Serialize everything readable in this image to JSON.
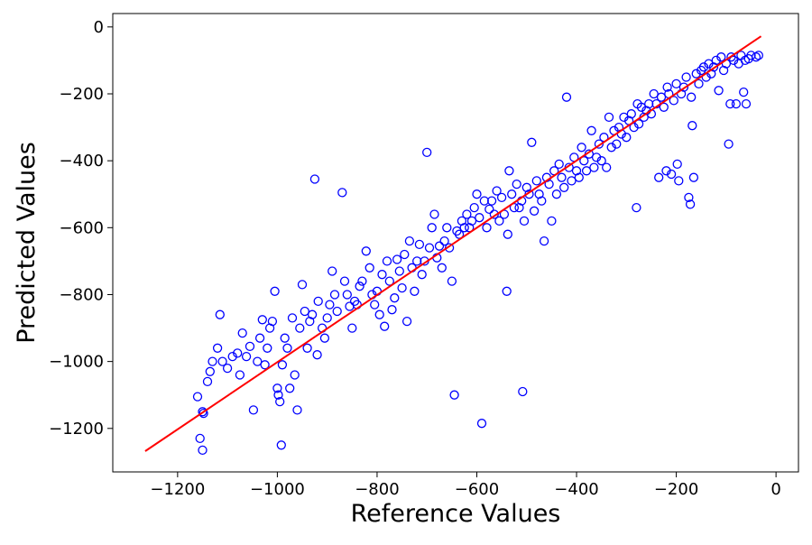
{
  "chart_data": {
    "type": "scatter",
    "title": "",
    "xlabel": "Reference Values",
    "ylabel": "Predicted Values",
    "xlim": [
      -1330,
      45
    ],
    "ylim": [
      -1330,
      40
    ],
    "xticks": [
      -1200,
      -1000,
      -800,
      -600,
      -400,
      -200,
      0
    ],
    "yticks": [
      -1200,
      -1000,
      -800,
      -600,
      -400,
      -200,
      0
    ],
    "xtick_labels": [
      "−1200",
      "−1000",
      "−800",
      "−600",
      "−400",
      "−200",
      "0"
    ],
    "ytick_labels": [
      "−1200",
      "−1000",
      "−800",
      "−600",
      "−400",
      "−200",
      "0"
    ],
    "grid": false,
    "legend": "none",
    "colors": {
      "points": "#0000ff",
      "fit_line": "#ff0000"
    },
    "fit_line": {
      "x": [
        -1265,
        -30
      ],
      "y": [
        -1268,
        -28
      ]
    },
    "series": [
      {
        "marker": "open-circle",
        "points": [
          [
            -1160,
            -1105
          ],
          [
            -1155,
            -1230
          ],
          [
            -1150,
            -1265
          ],
          [
            -1150,
            -1150
          ],
          [
            -1148,
            -1155
          ],
          [
            -1140,
            -1060
          ],
          [
            -1135,
            -1030
          ],
          [
            -1130,
            -1000
          ],
          [
            -1120,
            -960
          ],
          [
            -1115,
            -860
          ],
          [
            -1110,
            -1000
          ],
          [
            -1100,
            -1020
          ],
          [
            -1090,
            -985
          ],
          [
            -1080,
            -975
          ],
          [
            -1075,
            -1040
          ],
          [
            -1070,
            -915
          ],
          [
            -1062,
            -985
          ],
          [
            -1055,
            -955
          ],
          [
            -1048,
            -1145
          ],
          [
            -1040,
            -1000
          ],
          [
            -1035,
            -930
          ],
          [
            -1030,
            -875
          ],
          [
            -1025,
            -1010
          ],
          [
            -1020,
            -960
          ],
          [
            -1015,
            -900
          ],
          [
            -1010,
            -880
          ],
          [
            -1005,
            -790
          ],
          [
            -1000,
            -1080
          ],
          [
            -998,
            -1100
          ],
          [
            -995,
            -1120
          ],
          [
            -992,
            -1250
          ],
          [
            -990,
            -1010
          ],
          [
            -985,
            -930
          ],
          [
            -980,
            -960
          ],
          [
            -975,
            -1080
          ],
          [
            -970,
            -870
          ],
          [
            -965,
            -1040
          ],
          [
            -960,
            -1145
          ],
          [
            -955,
            -900
          ],
          [
            -950,
            -770
          ],
          [
            -945,
            -850
          ],
          [
            -940,
            -960
          ],
          [
            -935,
            -880
          ],
          [
            -930,
            -860
          ],
          [
            -925,
            -455
          ],
          [
            -920,
            -980
          ],
          [
            -918,
            -820
          ],
          [
            -910,
            -900
          ],
          [
            -905,
            -930
          ],
          [
            -900,
            -870
          ],
          [
            -895,
            -830
          ],
          [
            -890,
            -730
          ],
          [
            -885,
            -800
          ],
          [
            -880,
            -850
          ],
          [
            -870,
            -495
          ],
          [
            -865,
            -760
          ],
          [
            -860,
            -800
          ],
          [
            -855,
            -835
          ],
          [
            -850,
            -900
          ],
          [
            -845,
            -820
          ],
          [
            -840,
            -830
          ],
          [
            -835,
            -775
          ],
          [
            -830,
            -760
          ],
          [
            -822,
            -670
          ],
          [
            -815,
            -720
          ],
          [
            -810,
            -800
          ],
          [
            -805,
            -830
          ],
          [
            -800,
            -790
          ],
          [
            -795,
            -860
          ],
          [
            -790,
            -740
          ],
          [
            -785,
            -895
          ],
          [
            -780,
            -700
          ],
          [
            -775,
            -760
          ],
          [
            -770,
            -845
          ],
          [
            -765,
            -810
          ],
          [
            -760,
            -695
          ],
          [
            -755,
            -730
          ],
          [
            -750,
            -780
          ],
          [
            -745,
            -680
          ],
          [
            -740,
            -880
          ],
          [
            -735,
            -640
          ],
          [
            -730,
            -720
          ],
          [
            -725,
            -790
          ],
          [
            -720,
            -700
          ],
          [
            -715,
            -650
          ],
          [
            -710,
            -740
          ],
          [
            -705,
            -700
          ],
          [
            -700,
            -375
          ],
          [
            -695,
            -660
          ],
          [
            -690,
            -600
          ],
          [
            -685,
            -560
          ],
          [
            -680,
            -690
          ],
          [
            -675,
            -655
          ],
          [
            -670,
            -720
          ],
          [
            -665,
            -640
          ],
          [
            -660,
            -600
          ],
          [
            -655,
            -660
          ],
          [
            -650,
            -760
          ],
          [
            -645,
            -1100
          ],
          [
            -640,
            -610
          ],
          [
            -635,
            -620
          ],
          [
            -630,
            -580
          ],
          [
            -625,
            -600
          ],
          [
            -620,
            -560
          ],
          [
            -615,
            -600
          ],
          [
            -610,
            -580
          ],
          [
            -605,
            -540
          ],
          [
            -600,
            -500
          ],
          [
            -595,
            -570
          ],
          [
            -590,
            -1185
          ],
          [
            -585,
            -520
          ],
          [
            -580,
            -600
          ],
          [
            -575,
            -545
          ],
          [
            -570,
            -520
          ],
          [
            -565,
            -560
          ],
          [
            -560,
            -490
          ],
          [
            -555,
            -580
          ],
          [
            -550,
            -510
          ],
          [
            -545,
            -560
          ],
          [
            -540,
            -790
          ],
          [
            -538,
            -620
          ],
          [
            -535,
            -430
          ],
          [
            -530,
            -500
          ],
          [
            -525,
            -540
          ],
          [
            -520,
            -470
          ],
          [
            -515,
            -540
          ],
          [
            -510,
            -520
          ],
          [
            -508,
            -1090
          ],
          [
            -505,
            -580
          ],
          [
            -500,
            -480
          ],
          [
            -495,
            -500
          ],
          [
            -490,
            -345
          ],
          [
            -485,
            -550
          ],
          [
            -480,
            -460
          ],
          [
            -475,
            -500
          ],
          [
            -470,
            -520
          ],
          [
            -465,
            -640
          ],
          [
            -460,
            -450
          ],
          [
            -455,
            -470
          ],
          [
            -450,
            -580
          ],
          [
            -445,
            -430
          ],
          [
            -440,
            -500
          ],
          [
            -435,
            -410
          ],
          [
            -430,
            -450
          ],
          [
            -425,
            -480
          ],
          [
            -420,
            -210
          ],
          [
            -415,
            -420
          ],
          [
            -410,
            -460
          ],
          [
            -405,
            -390
          ],
          [
            -400,
            -430
          ],
          [
            -395,
            -450
          ],
          [
            -390,
            -360
          ],
          [
            -385,
            -400
          ],
          [
            -380,
            -430
          ],
          [
            -375,
            -380
          ],
          [
            -370,
            -310
          ],
          [
            -365,
            -420
          ],
          [
            -360,
            -390
          ],
          [
            -355,
            -350
          ],
          [
            -350,
            -400
          ],
          [
            -345,
            -330
          ],
          [
            -340,
            -420
          ],
          [
            -335,
            -270
          ],
          [
            -330,
            -360
          ],
          [
            -325,
            -310
          ],
          [
            -320,
            -350
          ],
          [
            -315,
            -300
          ],
          [
            -310,
            -320
          ],
          [
            -305,
            -270
          ],
          [
            -300,
            -330
          ],
          [
            -295,
            -280
          ],
          [
            -290,
            -260
          ],
          [
            -285,
            -300
          ],
          [
            -280,
            -540
          ],
          [
            -278,
            -230
          ],
          [
            -275,
            -290
          ],
          [
            -270,
            -240
          ],
          [
            -265,
            -270
          ],
          [
            -260,
            -250
          ],
          [
            -255,
            -230
          ],
          [
            -250,
            -260
          ],
          [
            -245,
            -200
          ],
          [
            -240,
            -230
          ],
          [
            -235,
            -450
          ],
          [
            -230,
            -210
          ],
          [
            -225,
            -240
          ],
          [
            -220,
            -430
          ],
          [
            -218,
            -180
          ],
          [
            -215,
            -200
          ],
          [
            -210,
            -440
          ],
          [
            -205,
            -220
          ],
          [
            -200,
            -170
          ],
          [
            -198,
            -410
          ],
          [
            -195,
            -460
          ],
          [
            -190,
            -200
          ],
          [
            -185,
            -180
          ],
          [
            -180,
            -150
          ],
          [
            -175,
            -510
          ],
          [
            -172,
            -530
          ],
          [
            -170,
            -210
          ],
          [
            -168,
            -295
          ],
          [
            -165,
            -450
          ],
          [
            -160,
            -140
          ],
          [
            -155,
            -170
          ],
          [
            -150,
            -130
          ],
          [
            -145,
            -120
          ],
          [
            -140,
            -150
          ],
          [
            -135,
            -110
          ],
          [
            -130,
            -140
          ],
          [
            -125,
            -120
          ],
          [
            -120,
            -100
          ],
          [
            -115,
            -190
          ],
          [
            -110,
            -90
          ],
          [
            -105,
            -130
          ],
          [
            -100,
            -110
          ],
          [
            -95,
            -350
          ],
          [
            -92,
            -230
          ],
          [
            -90,
            -90
          ],
          [
            -85,
            -100
          ],
          [
            -80,
            -230
          ],
          [
            -75,
            -110
          ],
          [
            -70,
            -85
          ],
          [
            -65,
            -195
          ],
          [
            -62,
            -100
          ],
          [
            -60,
            -230
          ],
          [
            -55,
            -95
          ],
          [
            -50,
            -85
          ],
          [
            -40,
            -90
          ],
          [
            -35,
            -85
          ]
        ]
      }
    ]
  }
}
